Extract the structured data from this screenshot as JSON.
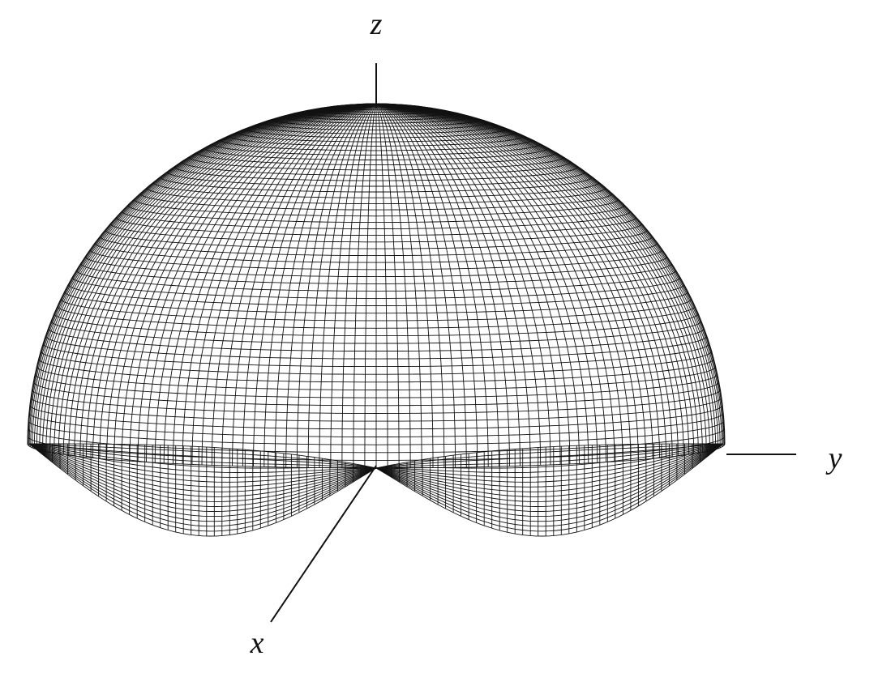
{
  "axes": {
    "z_label": "z",
    "y_label": "y",
    "x_label": "x"
  },
  "colors": {
    "background": "#ffffff",
    "ink": "#111111"
  }
}
